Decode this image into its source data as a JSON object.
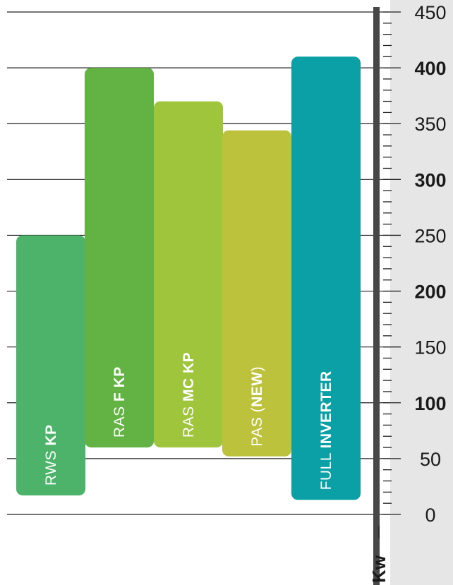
{
  "chart_data": {
    "type": "bar",
    "ylim": [
      0,
      450
    ],
    "unit": "Kw",
    "y_ticks": [
      {
        "value": 0,
        "label": "0",
        "bold": false
      },
      {
        "value": 50,
        "label": "50",
        "bold": false
      },
      {
        "value": 100,
        "label": "100",
        "bold": true
      },
      {
        "value": 150,
        "label": "150",
        "bold": false
      },
      {
        "value": 200,
        "label": "200",
        "bold": true
      },
      {
        "value": 250,
        "label": "250",
        "bold": false
      },
      {
        "value": 300,
        "label": "300",
        "bold": true
      },
      {
        "value": 350,
        "label": "350",
        "bold": false
      },
      {
        "value": 400,
        "label": "400",
        "bold": true
      },
      {
        "value": 450,
        "label": "450",
        "bold": false
      }
    ],
    "bars": [
      {
        "name": "RWS KP",
        "label_normal": "RWS ",
        "label_bold": "KP",
        "label_suffix": "",
        "min": 17,
        "max": 250,
        "color": "#4db36b"
      },
      {
        "name": "RAS F KP",
        "label_normal": "RAS ",
        "label_bold": "F KP",
        "label_suffix": "",
        "min": 60,
        "max": 400,
        "color": "#62b244"
      },
      {
        "name": "RAS MC KP",
        "label_normal": "RAS ",
        "label_bold": "MC KP",
        "label_suffix": "",
        "min": 60,
        "max": 370,
        "color": "#9ec53c"
      },
      {
        "name": "PAS (NEW)",
        "label_normal": "PAS (",
        "label_bold": "NEW",
        "label_suffix": ")",
        "min": 52,
        "max": 344,
        "color": "#bdc23d"
      },
      {
        "name": "FULL INVERTER",
        "label_normal": "FULL ",
        "label_bold": "INVERTER",
        "label_suffix": "",
        "min": 13,
        "max": 410,
        "color": "#0aa0a6"
      }
    ],
    "colors": {
      "axis": "#474747",
      "grid": "#222222",
      "scale_panel": "#e6e6e6"
    }
  }
}
